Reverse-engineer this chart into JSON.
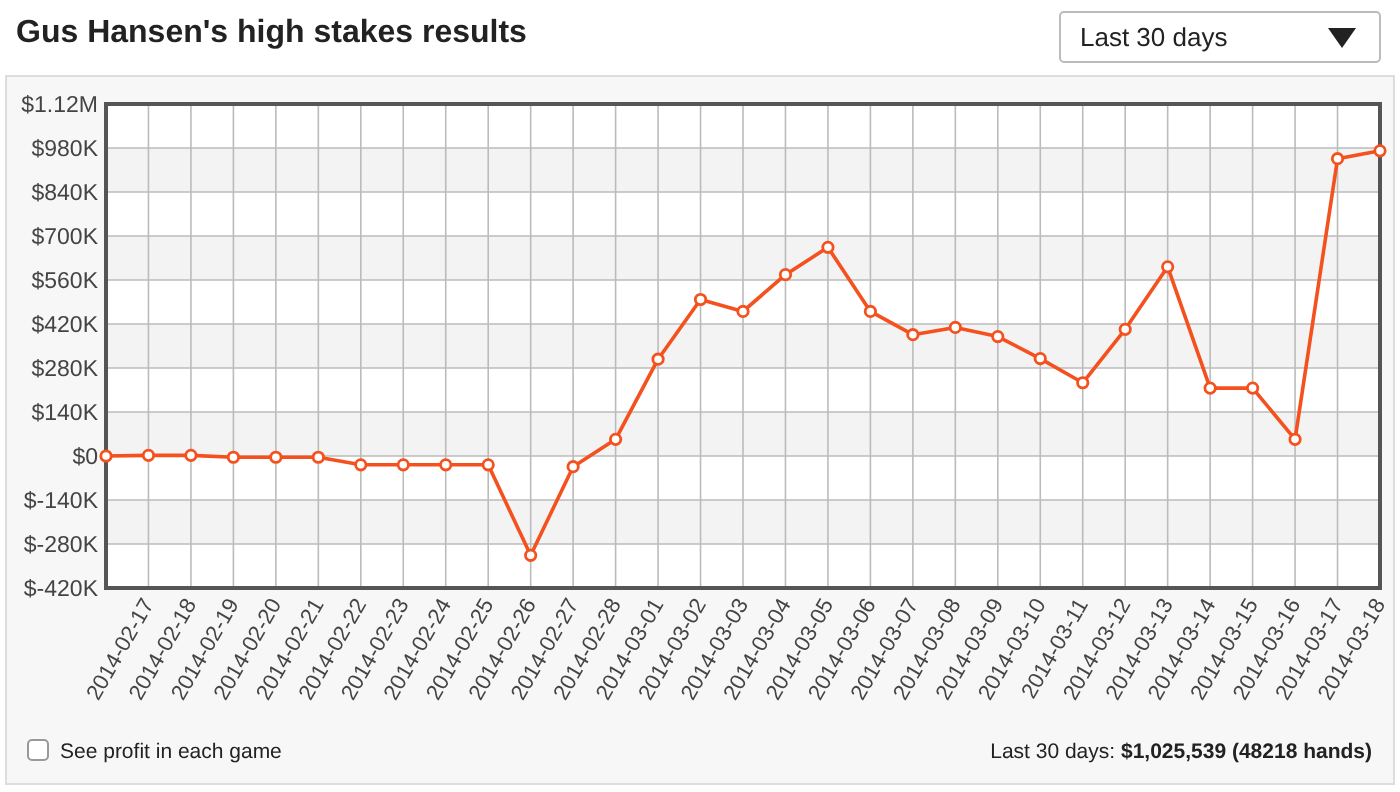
{
  "chart_data": {
    "type": "line",
    "title": "Gus Hansen's high stakes results",
    "categories": [
      null,
      "2014-02-17",
      "2014-02-18",
      "2014-02-19",
      "2014-02-20",
      "2014-02-21",
      "2014-02-22",
      "2014-02-23",
      "2014-02-24",
      "2014-02-25",
      "2014-02-26",
      "2014-02-27",
      "2014-02-28",
      "2014-03-01",
      "2014-03-02",
      "2014-03-03",
      "2014-03-04",
      "2014-03-05",
      "2014-03-06",
      "2014-03-07",
      "2014-03-08",
      "2014-03-09",
      "2014-03-10",
      "2014-03-11",
      "2014-03-12",
      "2014-03-13",
      "2014-03-14",
      "2014-03-15",
      "2014-03-16",
      "2014-03-17",
      "2014-03-18"
    ],
    "series": [
      {
        "color": "#f4511e",
        "values": [
          0,
          2000,
          2000,
          -4000,
          -4000,
          -4000,
          -28000,
          -28000,
          -28000,
          -28000,
          -316000,
          -34000,
          53000,
          308000,
          498000,
          460000,
          577000,
          664000,
          460000,
          386000,
          409000,
          380000,
          310000,
          233000,
          403000,
          602000,
          216000,
          216000,
          53000,
          946000,
          971000
        ]
      }
    ],
    "ylim": [
      -420000,
      1120000
    ],
    "yticks": [
      {
        "value": -420000,
        "label": "$-420K"
      },
      {
        "value": -280000,
        "label": "$-280K"
      },
      {
        "value": -140000,
        "label": "$-140K"
      },
      {
        "value": 0,
        "label": "$0"
      },
      {
        "value": 140000,
        "label": "$140K"
      },
      {
        "value": 280000,
        "label": "$280K"
      },
      {
        "value": 420000,
        "label": "$420K"
      },
      {
        "value": 560000,
        "label": "$560K"
      },
      {
        "value": 700000,
        "label": "$700K"
      },
      {
        "value": 840000,
        "label": "$840K"
      },
      {
        "value": 980000,
        "label": "$980K"
      },
      {
        "value": 1120000,
        "label": "$1.12M"
      }
    ],
    "grid": true,
    "marker": "circle",
    "line_style": "solid",
    "annotations": [
      "Last 30 days",
      "See profit in each game",
      "Last 30 days:",
      "$1,025,539 (48218 hands)"
    ]
  }
}
